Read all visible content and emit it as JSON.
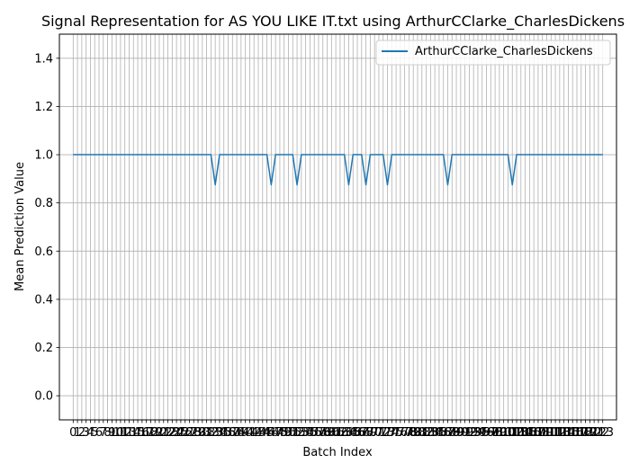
{
  "chart_data": {
    "type": "line",
    "title": "Signal Representation for AS YOU LIKE IT.txt using ArthurCClarke_CharlesDickens",
    "xlabel": "Batch Index",
    "ylabel": "Mean Prediction Value",
    "xlim": [
      -3.2,
      126.2
    ],
    "ylim": [
      -0.1,
      1.5
    ],
    "yticks": [
      0.0,
      0.2,
      0.4,
      0.6,
      0.8,
      1.0,
      1.2,
      1.4
    ],
    "ytick_labels": [
      "0.0",
      "0.2",
      "0.4",
      "0.6",
      "0.8",
      "1.0",
      "1.2",
      "1.4"
    ],
    "x_count": 124,
    "dips": [
      {
        "x": 33,
        "y": 0.875
      },
      {
        "x": 46,
        "y": 0.875
      },
      {
        "x": 52,
        "y": 0.875
      },
      {
        "x": 64,
        "y": 0.875
      },
      {
        "x": 68,
        "y": 0.875
      },
      {
        "x": 73,
        "y": 0.875
      },
      {
        "x": 87,
        "y": 0.875
      },
      {
        "x": 102,
        "y": 0.875
      }
    ],
    "baseline": 1.0,
    "grid": true,
    "legend_position": "top-right",
    "series": [
      {
        "name": "ArthurCClarke_CharlesDickens",
        "color": "#1f77b4"
      }
    ]
  }
}
